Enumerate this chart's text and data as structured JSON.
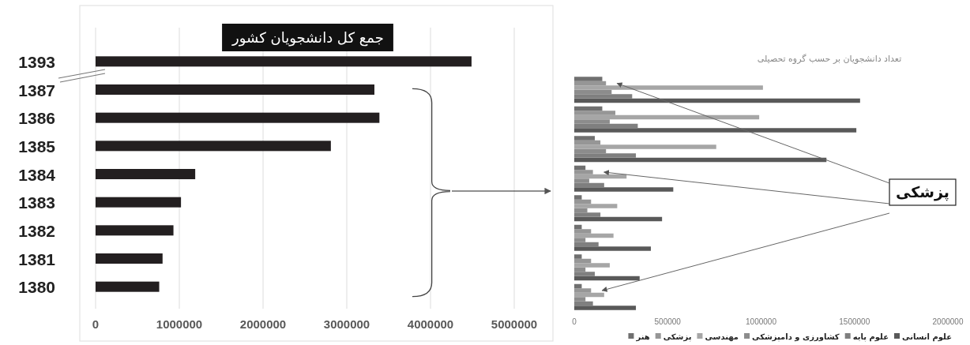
{
  "chart_data": [
    {
      "type": "bar",
      "orientation": "horizontal",
      "title": "جمع کل دانشجویان کشور",
      "categories": [
        "1393",
        "1387",
        "1386",
        "1385",
        "1384",
        "1383",
        "1382",
        "1381",
        "1380"
      ],
      "values": [
        4490000,
        3330000,
        3390000,
        2810000,
        1190000,
        1020000,
        930000,
        800000,
        760000
      ],
      "color": "#231f20",
      "xlim": [
        0,
        5000000
      ],
      "xticks": [
        0,
        1000000,
        2000000,
        3000000,
        4000000,
        5000000
      ],
      "grid": "x"
    },
    {
      "type": "bar",
      "orientation": "horizontal",
      "title": "تعداد دانشجویان بر حسب گروه تحصیلی",
      "categories": [
        null,
        null,
        null,
        null,
        null,
        null,
        null,
        null
      ],
      "series": [
        {
          "name": "علوم انسانی",
          "color": "#595959",
          "values": [
            1530000,
            1510000,
            1350000,
            530000,
            470000,
            410000,
            350000,
            330000
          ]
        },
        {
          "name": "علوم پایه",
          "color": "#7f7f7f",
          "values": [
            310000,
            340000,
            330000,
            160000,
            140000,
            130000,
            110000,
            100000
          ]
        },
        {
          "name": "کشاورزی و دامپزشکی",
          "color": "#8c8c8c",
          "values": [
            200000,
            190000,
            170000,
            80000,
            70000,
            60000,
            60000,
            60000
          ]
        },
        {
          "name": "مهندسی",
          "color": "#a6a6a6",
          "values": [
            1010000,
            990000,
            760000,
            280000,
            230000,
            210000,
            190000,
            160000
          ]
        },
        {
          "name": "پزشکی",
          "color": "#969696",
          "values": [
            170000,
            220000,
            140000,
            100000,
            90000,
            90000,
            90000,
            90000
          ]
        },
        {
          "name": "هنر",
          "color": "#707070",
          "values": [
            150000,
            150000,
            110000,
            60000,
            40000,
            40000,
            40000,
            40000
          ]
        }
      ],
      "xlim": [
        0,
        2000000
      ],
      "xticks": [
        0,
        500000,
        1000000,
        1500000,
        2000000
      ],
      "legend": "bottom",
      "annotations": [
        "پزشکی"
      ]
    }
  ]
}
